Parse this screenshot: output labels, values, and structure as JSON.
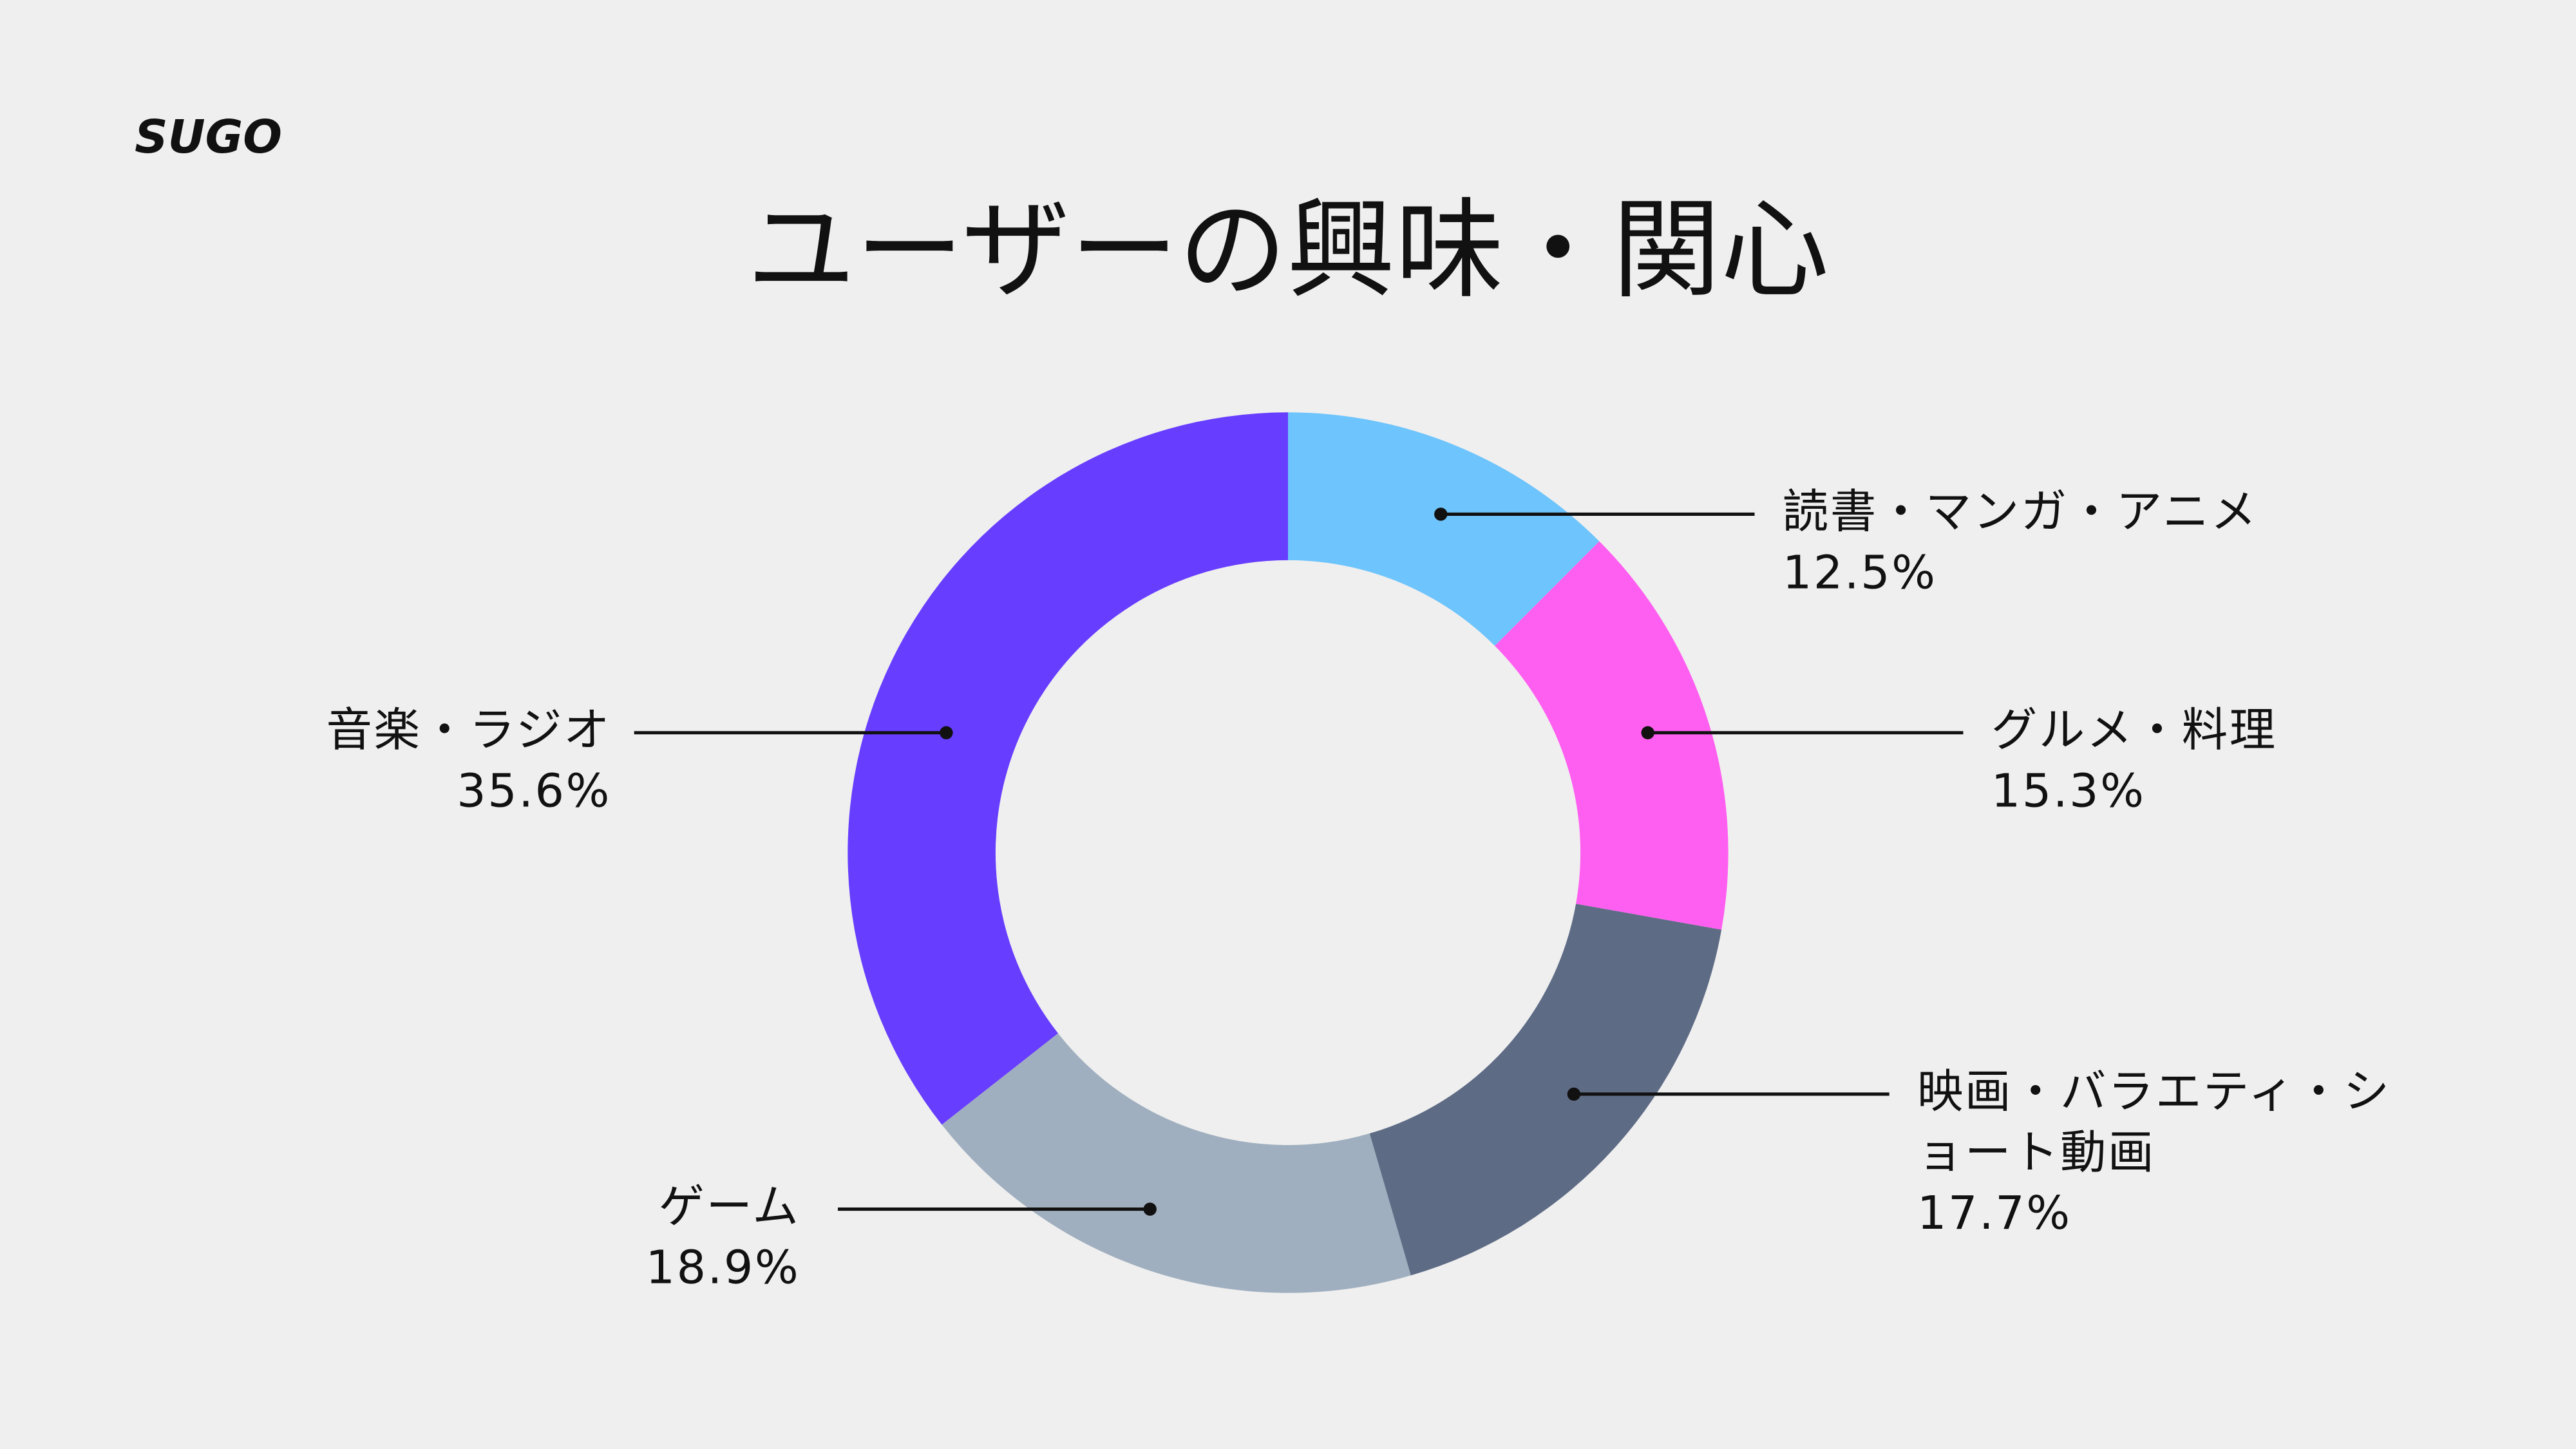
{
  "brand": "SUGO",
  "chart_data": {
    "type": "donut",
    "title": "ユーザーの興味・関心",
    "categories": [
      "読書・マンガ・アニメ",
      "グルメ・料理",
      "映画・バラエティ・ショート動画",
      "ゲーム",
      "音楽・ラジオ"
    ],
    "values": [
      12.5,
      15.3,
      17.7,
      18.9,
      35.6
    ],
    "value_labels": [
      "12.5%",
      "15.3%",
      "17.7%",
      "18.9%",
      "35.6%"
    ],
    "colors": [
      "#6ec4fc",
      "#ff5ff0",
      "#5e6b85",
      "#a0afbf",
      "#673dff"
    ]
  }
}
